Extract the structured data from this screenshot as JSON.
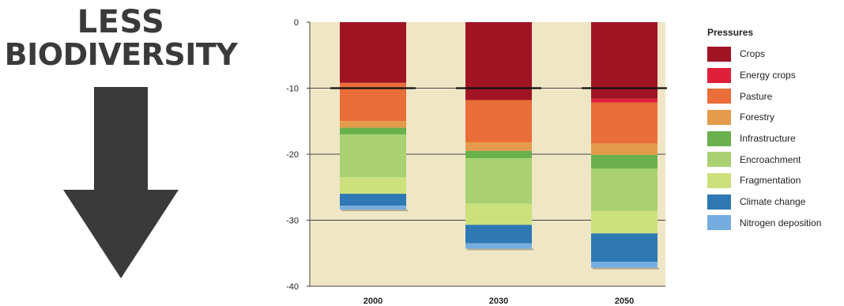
{
  "headline": {
    "line1": "LESS",
    "line2": "BIODIVERSITY"
  },
  "chart_data": {
    "type": "bar",
    "stacked": true,
    "categories": [
      "2000",
      "2030",
      "2050"
    ],
    "yticks": [
      "0",
      "-10",
      "-20",
      "-30",
      "-40"
    ],
    "ylim": [
      -40,
      0
    ],
    "legend_title": "Pressures",
    "legend_position": "right",
    "background": "#efe6c5",
    "series": [
      {
        "name": "Crops",
        "color": "#a01424",
        "values": [
          -9.2,
          -11.8,
          -11.6
        ]
      },
      {
        "name": "Energy crops",
        "color": "#e0203a",
        "values": [
          0,
          0,
          -0.6
        ]
      },
      {
        "name": "Pasture",
        "color": "#ea6e3a",
        "values": [
          -5.8,
          -6.4,
          -6.2
        ]
      },
      {
        "name": "Forestry",
        "color": "#e59b4c",
        "values": [
          -1.0,
          -1.3,
          -1.7
        ]
      },
      {
        "name": "Infrastructure",
        "color": "#6ab04c",
        "values": [
          -1.0,
          -1.1,
          -2.1
        ]
      },
      {
        "name": "Encroachment",
        "color": "#a9d172",
        "values": [
          -6.5,
          -6.9,
          -6.4
        ]
      },
      {
        "name": "Fragmentation",
        "color": "#cce17c",
        "values": [
          -2.5,
          -3.2,
          -3.4
        ]
      },
      {
        "name": "Climate change",
        "color": "#2e78b3",
        "values": [
          -1.8,
          -2.8,
          -4.3
        ]
      },
      {
        "name": "Nitrogen deposition",
        "color": "#76ade0",
        "values": [
          -0.6,
          -0.8,
          -0.9
        ]
      }
    ],
    "reference_line": -10
  }
}
